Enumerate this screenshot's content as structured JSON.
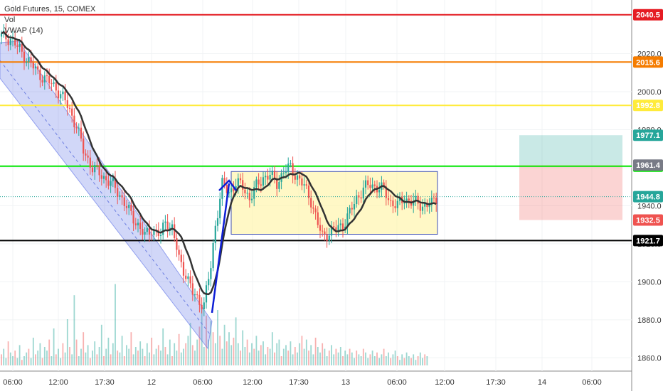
{
  "legend": {
    "symbol": "Gold Futures, 15, COMEX",
    "indicator1": "Vol",
    "indicator2": "VWAP (14)"
  },
  "chart_data": {
    "type": "candlestick",
    "ylim": [
      1856,
      2046
    ],
    "yticks": [
      1860.0,
      1880.0,
      1900.0,
      1920.0,
      1940.0,
      1960.0,
      1980.0,
      2000.0,
      2020.0,
      2040.0
    ],
    "xticks": [
      "06:00",
      "12:00",
      "17:30",
      "12",
      "06:00",
      "12:00",
      "17:30",
      "13",
      "06:00",
      "12:00",
      "17:30",
      "14",
      "06:00"
    ],
    "horizontal_levels": [
      {
        "value": 2040.5,
        "label": "2040.5",
        "color": "#e51c23"
      },
      {
        "value": 2015.6,
        "label": "2015.6",
        "color": "#f57c00"
      },
      {
        "value": 1992.8,
        "label": "1992.8",
        "color": "#ffeb3b"
      },
      {
        "value": 1960.8,
        "label": "1960.8",
        "color": "#00e600"
      },
      {
        "value": 1921.7,
        "label": "1921.7",
        "color": "#000000"
      }
    ],
    "price_tags": [
      {
        "value": 1977.1,
        "label": "1977.1",
        "color": "#26a69a"
      },
      {
        "value": 1961.4,
        "label": "1961.4",
        "color": "#787b86"
      },
      {
        "value": 1944.8,
        "label": "1944.8",
        "color": "#26a69a"
      },
      {
        "value": 1932.5,
        "label": "1932.5",
        "color": "#ef5350"
      }
    ],
    "current_price": 1944.8,
    "range_box": {
      "top": 1958,
      "bottom": 1925
    },
    "position": {
      "stop": 1932.5,
      "entry": 1961.4,
      "target": 1977.1
    },
    "close_path": [
      [
        0,
        2029
      ],
      [
        4,
        2028
      ],
      [
        8,
        2022
      ],
      [
        12,
        2016
      ],
      [
        16,
        2010
      ],
      [
        20,
        2006
      ],
      [
        24,
        2002
      ],
      [
        28,
        1995
      ],
      [
        30,
        1990
      ],
      [
        33,
        1982
      ],
      [
        36,
        1969
      ],
      [
        40,
        1960
      ],
      [
        44,
        1956
      ],
      [
        48,
        1952
      ],
      [
        52,
        1946
      ],
      [
        56,
        1937
      ],
      [
        60,
        1930
      ],
      [
        63,
        1924
      ],
      [
        66,
        1928
      ],
      [
        70,
        1924
      ],
      [
        72,
        1932
      ],
      [
        75,
        1928
      ],
      [
        78,
        1912
      ],
      [
        81,
        1904
      ],
      [
        84,
        1894
      ],
      [
        87,
        1890
      ],
      [
        89,
        1888
      ],
      [
        90,
        1895
      ],
      [
        92,
        1908
      ],
      [
        94,
        1930
      ],
      [
        97,
        1951
      ],
      [
        100,
        1947
      ],
      [
        103,
        1952
      ],
      [
        106,
        1950
      ],
      [
        109,
        1944
      ],
      [
        112,
        1950
      ],
      [
        115,
        1955
      ],
      [
        118,
        1956
      ],
      [
        121,
        1952
      ],
      [
        124,
        1958
      ],
      [
        127,
        1960
      ],
      [
        130,
        1955
      ],
      [
        133,
        1950
      ],
      [
        136,
        1943
      ],
      [
        139,
        1930
      ],
      [
        141,
        1924
      ],
      [
        144,
        1926
      ],
      [
        147,
        1928
      ],
      [
        150,
        1930
      ],
      [
        153,
        1936
      ],
      [
        156,
        1944
      ],
      [
        159,
        1949
      ],
      [
        162,
        1951
      ],
      [
        165,
        1950
      ],
      [
        168,
        1948
      ],
      [
        171,
        1942
      ],
      [
        174,
        1940
      ],
      [
        177,
        1944
      ],
      [
        180,
        1942
      ],
      [
        183,
        1941
      ],
      [
        186,
        1940
      ],
      [
        189,
        1941
      ],
      [
        191,
        1944
      ]
    ],
    "volumes": [
      6,
      9,
      4,
      13,
      7,
      5,
      8,
      4,
      11,
      3,
      5,
      7,
      9,
      4,
      15,
      6,
      8,
      12,
      4,
      10,
      8,
      14,
      5,
      20,
      6,
      9,
      4,
      12,
      7,
      25,
      10,
      6,
      38,
      14,
      5,
      9,
      18,
      7,
      11,
      4,
      8,
      13,
      6,
      10,
      22,
      5,
      9,
      15,
      6,
      12,
      44,
      8,
      7,
      16,
      5,
      11,
      9,
      18,
      6,
      10,
      8,
      13,
      9,
      5,
      12,
      7,
      15,
      6,
      9,
      11,
      8,
      20,
      10,
      6,
      14,
      5,
      12,
      8,
      17,
      7,
      9,
      12,
      16,
      23,
      11,
      8,
      14,
      21,
      32,
      10,
      27,
      14,
      24,
      18,
      12,
      30,
      16,
      9,
      22,
      13,
      18,
      11,
      15,
      26,
      12,
      8,
      19,
      10,
      14,
      7,
      12,
      9,
      16,
      8,
      11,
      13,
      6,
      10,
      9,
      18,
      7,
      12,
      14,
      5,
      9,
      11,
      8,
      13,
      6,
      10,
      7,
      12,
      16,
      9,
      14,
      8,
      11,
      6,
      15,
      10,
      7,
      12,
      9,
      5,
      8,
      11,
      6,
      9,
      7,
      10,
      5,
      8,
      6,
      9,
      7,
      4,
      8,
      6,
      5,
      9,
      7,
      4,
      6,
      8,
      5,
      7,
      4,
      6,
      9,
      5,
      7,
      4,
      6,
      8,
      5,
      3,
      6,
      4,
      7,
      5,
      4,
      6,
      3,
      5,
      7,
      4,
      6,
      5
    ]
  }
}
